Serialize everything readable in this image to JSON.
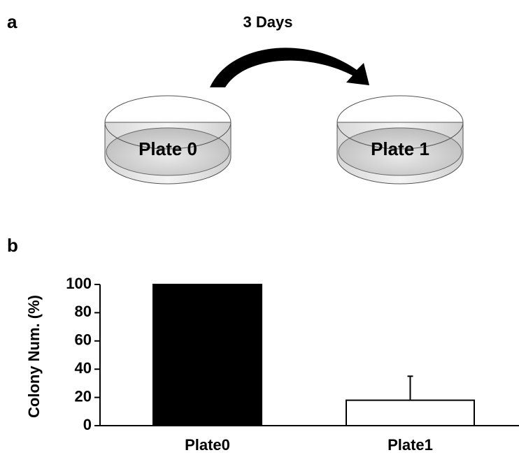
{
  "diagram": {
    "panel_label": "a",
    "arrow_label": "3 Days",
    "plates": [
      "Plate 0",
      "Plate 1"
    ]
  },
  "chart_data": {
    "panel_label": "b",
    "type": "bar",
    "y_label": "Colony Num. (%)",
    "categories": [
      "Plate0",
      "Plate1"
    ],
    "values": [
      100,
      18
    ],
    "errors": [
      null,
      17
    ],
    "colors": [
      "#000000",
      "#ffffff"
    ],
    "ylim": [
      0,
      100
    ],
    "yticks": [
      0,
      20,
      40,
      60,
      80,
      100
    ]
  }
}
